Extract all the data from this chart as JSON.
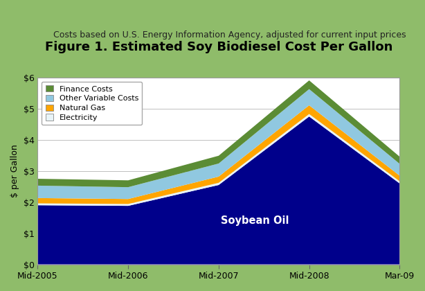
{
  "title": "Figure 1. Estimated Soy Biodiesel Cost Per Gallon",
  "subtitle": "Costs based on U.S. Energy Information Agency, adjusted for current input prices",
  "ylabel": "$ per Gallon",
  "x_labels": [
    "Mid-2005",
    "Mid-2006",
    "Mid-2007",
    "Mid-2008",
    "Mar-09"
  ],
  "ylim": [
    0,
    6
  ],
  "yticks": [
    0,
    1,
    2,
    3,
    4,
    5,
    6
  ],
  "ytick_labels": [
    "$0",
    "$1",
    "$2",
    "$3",
    "$4",
    "$5",
    "$6"
  ],
  "soybean_oil": [
    1.9,
    1.88,
    2.55,
    4.75,
    2.6
  ],
  "electricity": [
    0.06,
    0.06,
    0.07,
    0.08,
    0.07
  ],
  "natural_gas": [
    0.17,
    0.16,
    0.2,
    0.28,
    0.18
  ],
  "other_variable": [
    0.4,
    0.38,
    0.42,
    0.52,
    0.38
  ],
  "finance_costs": [
    0.22,
    0.22,
    0.25,
    0.28,
    0.23
  ],
  "colors": {
    "soybean_oil": "#00008B",
    "electricity": "#E8F4F8",
    "natural_gas": "#FFA500",
    "other_variable": "#90C8E0",
    "finance_costs": "#5B8C35"
  },
  "legend_labels": [
    "Finance Costs",
    "Other Variable Costs",
    "Natural Gas",
    "Electricity"
  ],
  "legend_colors": [
    "#5B8C35",
    "#90C8E0",
    "#FFA500",
    "#E8F4F8"
  ],
  "soybean_label": "Soybean Oil",
  "bg_color_left": "#7DB550",
  "bg_color_right": "#A8C870",
  "plot_bg_color": "#FFFFFF",
  "title_fontsize": 13,
  "subtitle_fontsize": 9,
  "axis_fontsize": 9,
  "grid_color": "#C0C0C0"
}
